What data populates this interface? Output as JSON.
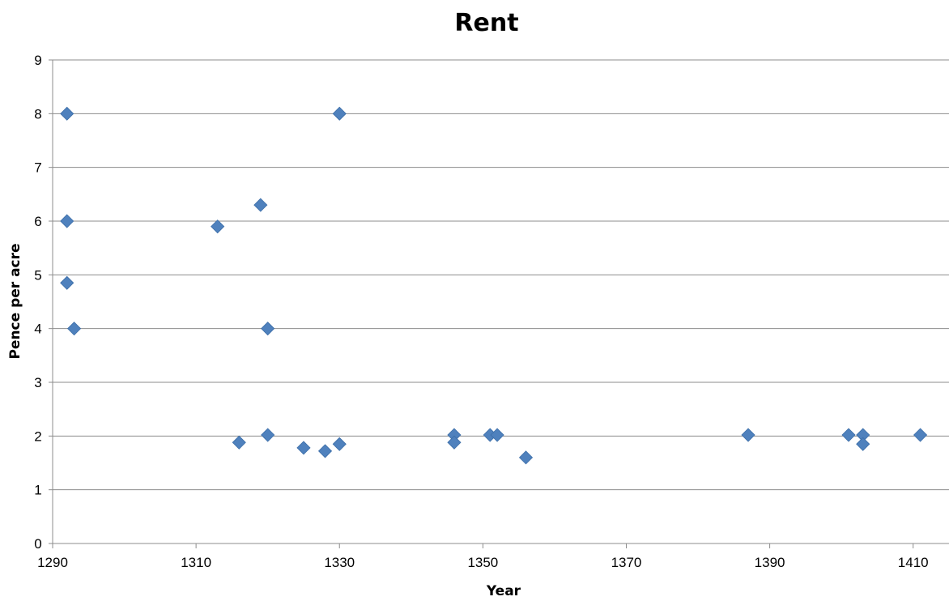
{
  "chart_data": {
    "type": "scatter",
    "title": "Rent",
    "xlabel": "Year",
    "ylabel": "Pence per acre",
    "xlim": [
      1290,
      1415
    ],
    "ylim": [
      0,
      9
    ],
    "xticks": [
      1290,
      1310,
      1330,
      1350,
      1370,
      1390,
      1410
    ],
    "yticks": [
      0,
      1,
      2,
      3,
      4,
      5,
      6,
      7,
      8,
      9
    ],
    "grid": "horizontal",
    "legend": "none",
    "marker": "diamond",
    "series": [
      {
        "color": "#4f81bd",
        "points": [
          {
            "x": 1292,
            "y": 8
          },
          {
            "x": 1292,
            "y": 6
          },
          {
            "x": 1292,
            "y": 4.85
          },
          {
            "x": 1293,
            "y": 4
          },
          {
            "x": 1313,
            "y": 5.9
          },
          {
            "x": 1316,
            "y": 1.88
          },
          {
            "x": 1319,
            "y": 6.3
          },
          {
            "x": 1320,
            "y": 4
          },
          {
            "x": 1320,
            "y": 2.02
          },
          {
            "x": 1325,
            "y": 1.78
          },
          {
            "x": 1328,
            "y": 1.72
          },
          {
            "x": 1330,
            "y": 8
          },
          {
            "x": 1330,
            "y": 1.85
          },
          {
            "x": 1346,
            "y": 2.02
          },
          {
            "x": 1346,
            "y": 1.88
          },
          {
            "x": 1351,
            "y": 2.02
          },
          {
            "x": 1352,
            "y": 2.02
          },
          {
            "x": 1356,
            "y": 1.6
          },
          {
            "x": 1387,
            "y": 2.02
          },
          {
            "x": 1401,
            "y": 2.02
          },
          {
            "x": 1403,
            "y": 2.02
          },
          {
            "x": 1403,
            "y": 1.85
          },
          {
            "x": 1411,
            "y": 2.02
          }
        ]
      }
    ]
  }
}
